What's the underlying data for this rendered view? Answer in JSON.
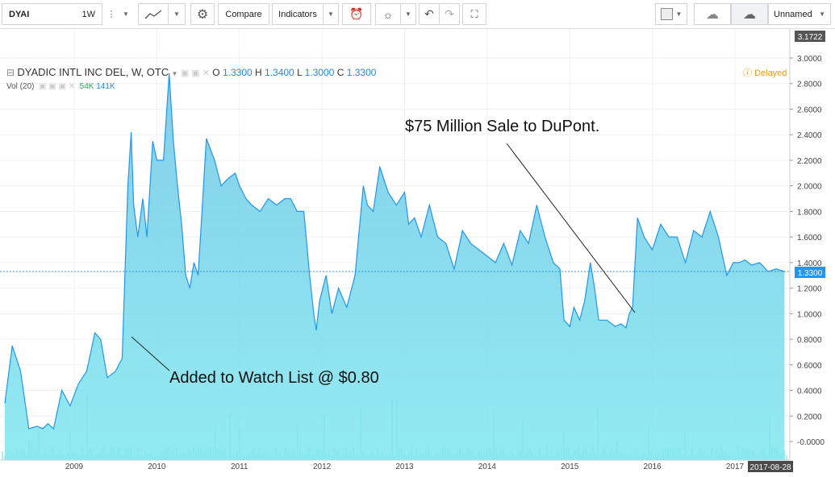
{
  "toolbar": {
    "symbol": "DYAI",
    "interval": "1W",
    "compare_label": "Compare",
    "indicators_label": "Indicators",
    "layout_name": "Unnamed"
  },
  "legend": {
    "title": "DYADIC INTL INC DEL, W, OTC",
    "o_label": "O",
    "o": "1.3300",
    "h_label": "H",
    "h": "1.3400",
    "l_label": "L",
    "l": "1.3000",
    "c_label": "C",
    "c": "1.3300",
    "delayed": "Delayed"
  },
  "volume_legend": {
    "label": "Vol (20)",
    "v1": "54K",
    "v2": "141K"
  },
  "price_axis": {
    "top_label": "3.1722",
    "last_label": "1.3300"
  },
  "date_axis": {
    "end_label": "2017-08-28"
  },
  "annotations": {
    "watch": "Added to Watch List @ $0.80",
    "dupont": "$75 Million Sale to DuPont."
  },
  "colors": {
    "line": "#2196f3",
    "area_top": "#6ec6e6",
    "area_bottom": "#7fe7ef",
    "volume": "#7ee0e6",
    "delayed": "#f39c12",
    "last_price_tag": "#2196f3",
    "top_price_tag": "#555555"
  },
  "chart_data": {
    "type": "area",
    "ylim": [
      -0.06,
      3.17
    ],
    "yticks": [
      3.0,
      2.8,
      2.6,
      2.4,
      2.2,
      2.0,
      1.8,
      1.6,
      1.4,
      1.2,
      1.0,
      0.8,
      0.6,
      0.4,
      0.2,
      0.0
    ],
    "ytick_labels": [
      "3.0000",
      "2.8000",
      "2.6000",
      "2.4000",
      "2.2000",
      "2.0000",
      "1.8000",
      "1.6000",
      "1.4000",
      "1.2000",
      "1.0000",
      "0.8000",
      "0.6000",
      "0.4000",
      "0.2000",
      "-0.0000"
    ],
    "xticks": [
      2009,
      2010,
      2011,
      2012,
      2013,
      2014,
      2015,
      2016,
      2017
    ],
    "xlim": [
      2008.15,
      2017.66
    ],
    "grid": true,
    "series": [
      {
        "x": [
          2008.16,
          2008.25,
          2008.35,
          2008.45,
          2008.55,
          2008.62,
          2008.68,
          2008.75,
          2008.85,
          2008.95,
          2009.05,
          2009.15,
          2009.25,
          2009.32,
          2009.4,
          2009.5,
          2009.58,
          2009.65,
          2009.69,
          2009.72,
          2009.77,
          2009.83,
          2009.88,
          2009.95,
          2010.0,
          2010.08,
          2010.15,
          2010.2,
          2010.25,
          2010.3,
          2010.35,
          2010.4,
          2010.45,
          2010.5,
          2010.6,
          2010.7,
          2010.78,
          2010.85,
          2010.95,
          2011.0,
          2011.08,
          2011.15,
          2011.25,
          2011.35,
          2011.45,
          2011.55,
          2011.62,
          2011.7,
          2011.78,
          2011.85,
          2011.9,
          2011.93,
          2011.97,
          2012.05,
          2012.12,
          2012.2,
          2012.3,
          2012.4,
          2012.5,
          2012.55,
          2012.62,
          2012.7,
          2012.8,
          2012.9,
          2013.0,
          2013.05,
          2013.12,
          2013.2,
          2013.3,
          2013.4,
          2013.5,
          2013.6,
          2013.7,
          2013.8,
          2013.9,
          2014.0,
          2014.1,
          2014.2,
          2014.3,
          2014.4,
          2014.5,
          2014.6,
          2014.7,
          2014.8,
          2014.88,
          2014.93,
          2015.0,
          2015.05,
          2015.12,
          2015.18,
          2015.25,
          2015.3,
          2015.35,
          2015.45,
          2015.55,
          2015.62,
          2015.68,
          2015.72,
          2015.76,
          2015.82,
          2015.9,
          2016.0,
          2016.1,
          2016.2,
          2016.3,
          2016.4,
          2016.5,
          2016.6,
          2016.7,
          2016.8,
          2016.9,
          2016.98,
          2017.05,
          2017.12,
          2017.2,
          2017.3,
          2017.4,
          2017.5,
          2017.6
        ],
        "y": [
          0.3,
          0.75,
          0.55,
          0.1,
          0.12,
          0.1,
          0.14,
          0.1,
          0.4,
          0.28,
          0.45,
          0.55,
          0.85,
          0.8,
          0.5,
          0.55,
          0.65,
          2.0,
          2.42,
          1.85,
          1.6,
          1.9,
          1.6,
          2.35,
          2.2,
          2.2,
          2.88,
          2.35,
          2.0,
          1.7,
          1.3,
          1.2,
          1.4,
          1.3,
          2.37,
          2.2,
          2.0,
          2.05,
          2.1,
          2.0,
          1.9,
          1.85,
          1.8,
          1.9,
          1.85,
          1.9,
          1.9,
          1.8,
          1.8,
          1.3,
          1.0,
          0.87,
          1.1,
          1.3,
          1.0,
          1.2,
          1.05,
          1.3,
          2.0,
          1.85,
          1.8,
          2.15,
          1.95,
          1.85,
          1.95,
          1.7,
          1.75,
          1.6,
          1.85,
          1.6,
          1.55,
          1.35,
          1.65,
          1.55,
          1.5,
          1.45,
          1.4,
          1.55,
          1.38,
          1.65,
          1.55,
          1.85,
          1.6,
          1.4,
          1.35,
          0.95,
          0.9,
          1.05,
          0.95,
          1.1,
          1.4,
          1.2,
          0.95,
          0.95,
          0.9,
          0.92,
          0.89,
          1.0,
          1.05,
          1.75,
          1.6,
          1.5,
          1.7,
          1.6,
          1.6,
          1.4,
          1.65,
          1.6,
          1.8,
          1.6,
          1.3,
          1.4,
          1.4,
          1.42,
          1.38,
          1.4,
          1.33,
          1.35,
          1.33
        ]
      }
    ]
  }
}
